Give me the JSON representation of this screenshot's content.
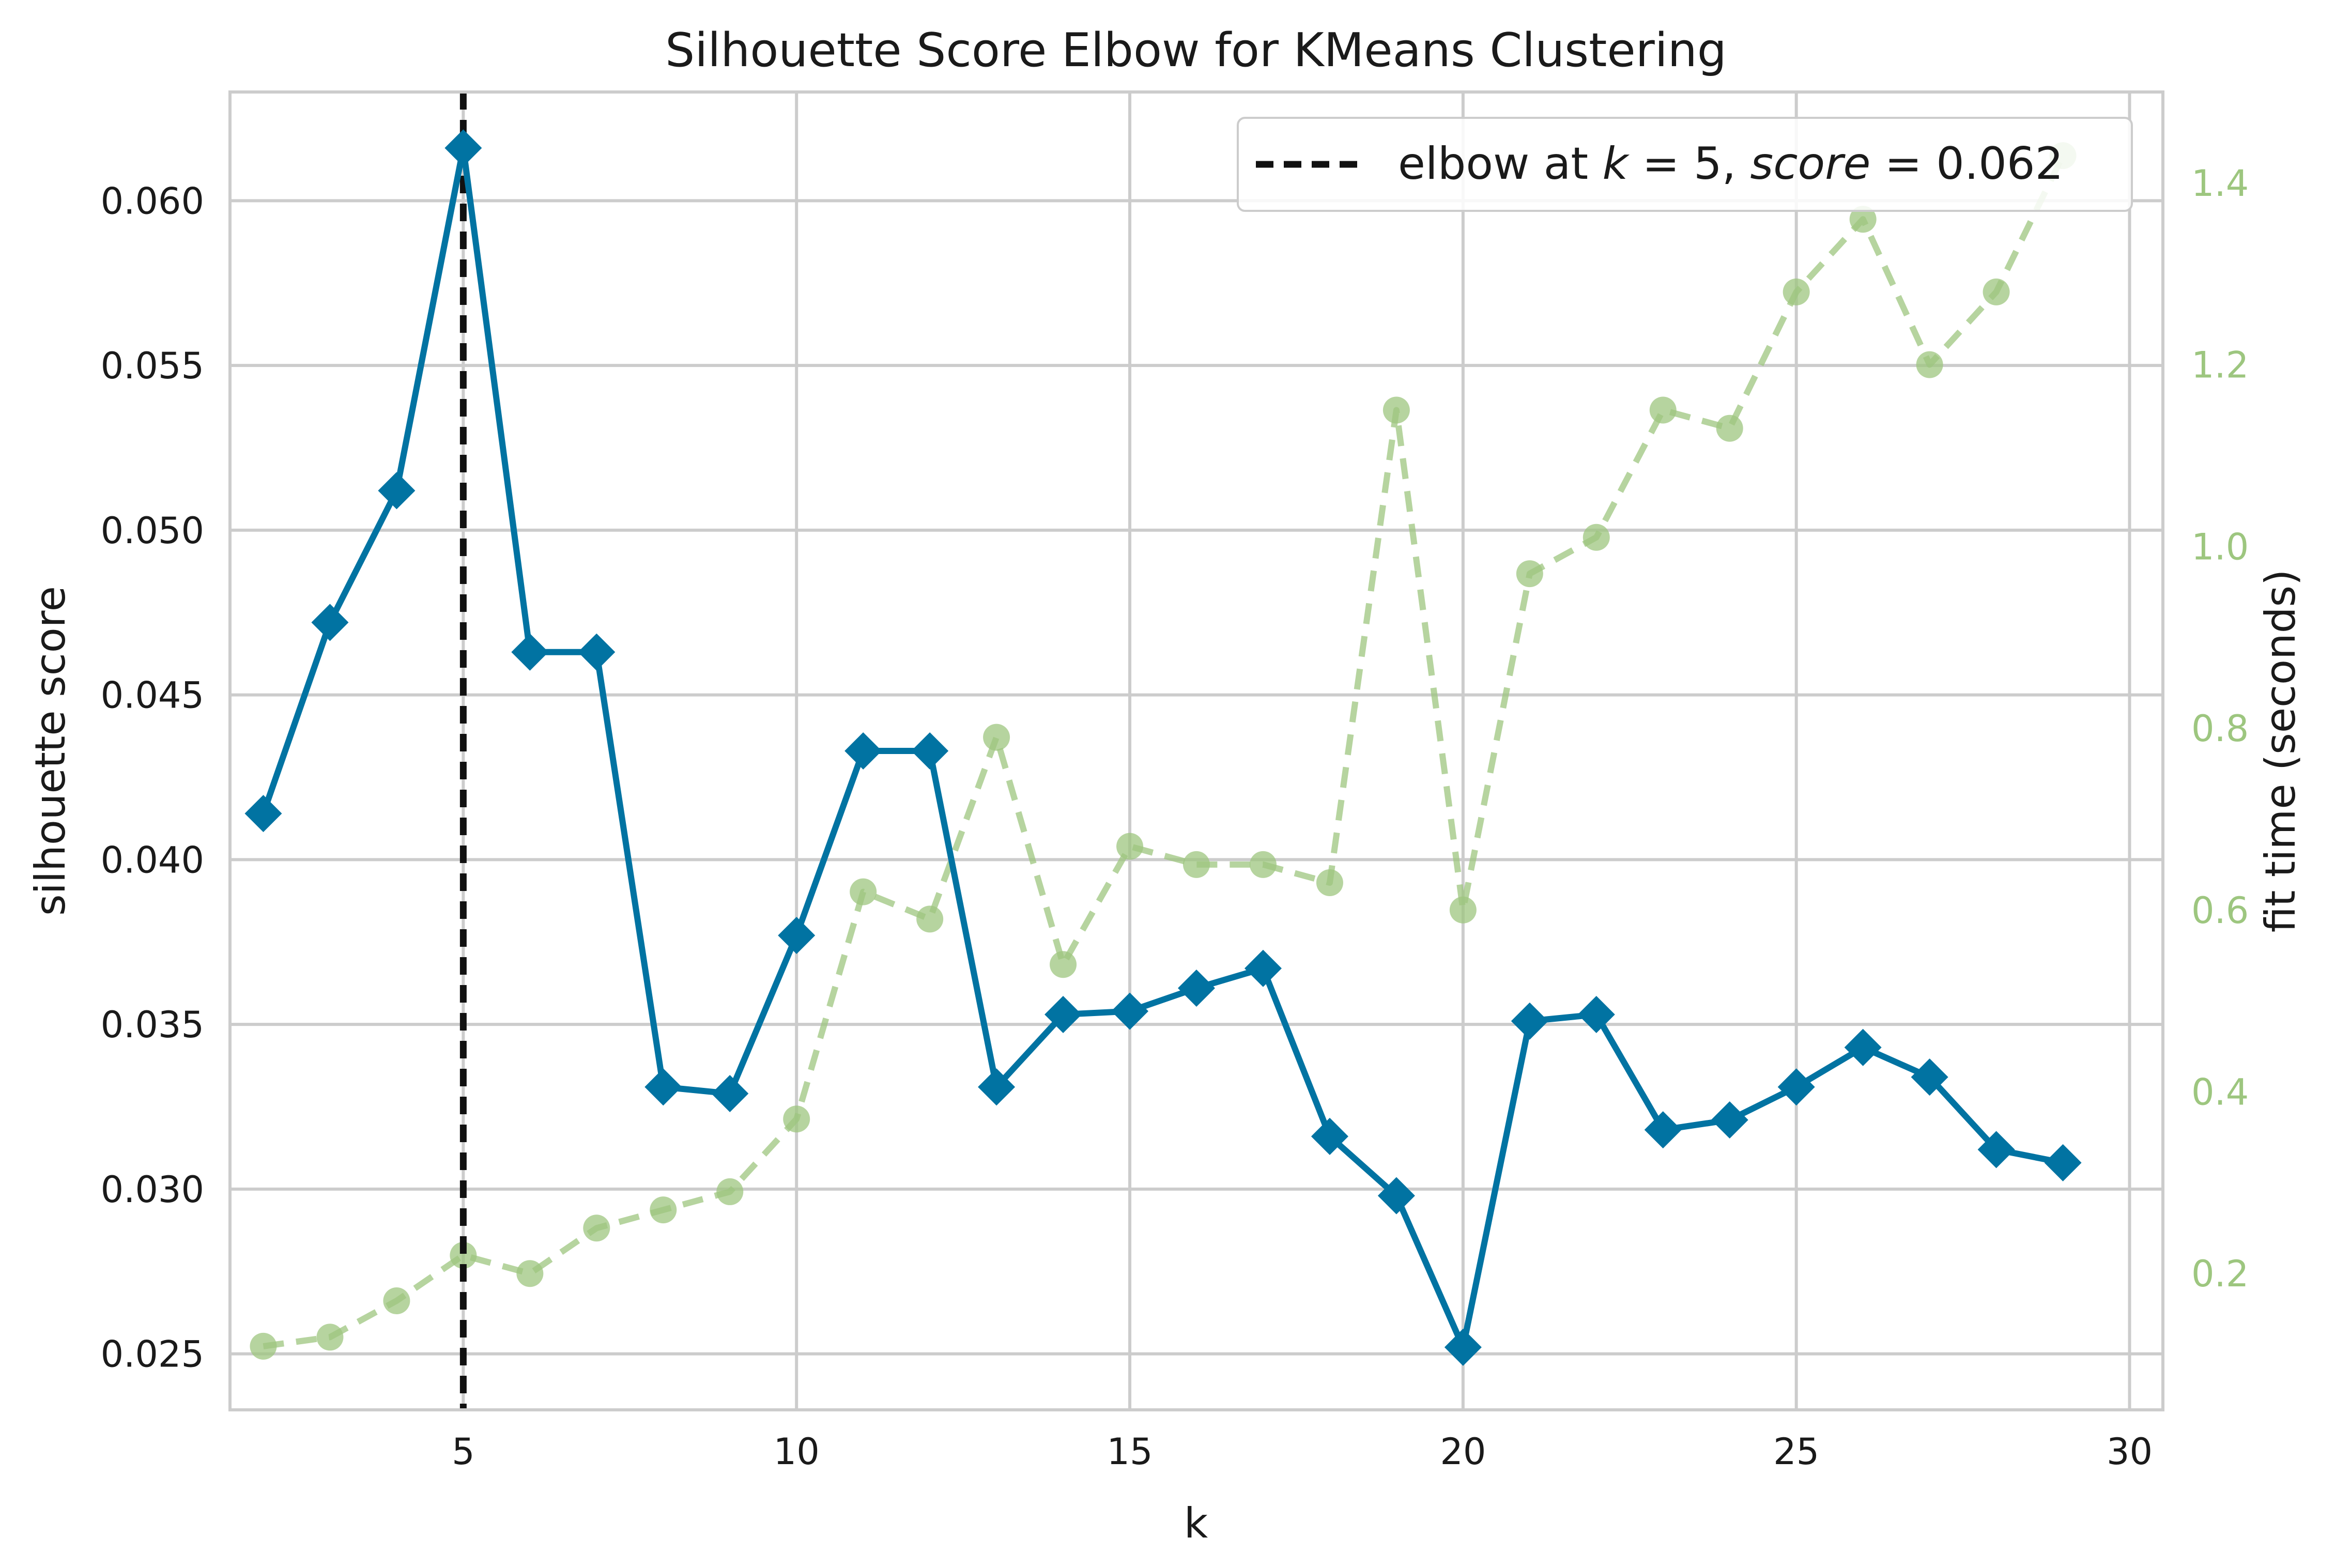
{
  "chart_data": {
    "type": "line",
    "title": "Silhouette Score Elbow for KMeans Clustering",
    "xlabel": "k",
    "ylabel": "silhouette score",
    "y2label": "fit time (seconds)",
    "xlim": [
      1.5,
      30.5
    ],
    "ylim": [
      0.0233,
      0.0633
    ],
    "y2lim": [
      0.05,
      1.5
    ],
    "xticks": [
      "5",
      "10",
      "15",
      "20",
      "25",
      "30"
    ],
    "xtick_values": [
      5,
      10,
      15,
      20,
      25,
      30
    ],
    "yticks": [
      "0.025",
      "0.030",
      "0.035",
      "0.040",
      "0.045",
      "0.050",
      "0.055",
      "0.060"
    ],
    "ytick_values": [
      0.025,
      0.03,
      0.035,
      0.04,
      0.045,
      0.05,
      0.055,
      0.06
    ],
    "y2ticks": [
      "0.2",
      "0.4",
      "0.6",
      "0.8",
      "1.0",
      "1.2",
      "1.4"
    ],
    "y2tick_values": [
      0.2,
      0.4,
      0.6,
      0.8,
      1.0,
      1.2,
      1.4
    ],
    "grid": true,
    "legend_position": "top-right",
    "x": [
      2,
      3,
      4,
      5,
      6,
      7,
      8,
      9,
      10,
      11,
      12,
      13,
      14,
      15,
      16,
      17,
      18,
      19,
      20,
      21,
      22,
      23,
      24,
      25,
      26,
      27,
      28,
      29
    ],
    "series": [
      {
        "axis": "left",
        "marker": "diamond",
        "color": "#0173a2",
        "values": [
          0.0414,
          0.0472,
          0.0512,
          0.0616,
          0.0463,
          0.0463,
          0.0331,
          0.0329,
          0.0377,
          0.0433,
          0.0433,
          0.0331,
          0.0353,
          0.0354,
          0.0361,
          0.0367,
          0.0316,
          0.0298,
          0.0252,
          0.0351,
          0.0353,
          0.0318,
          0.0321,
          0.0331,
          0.0343,
          0.0334,
          0.0312,
          0.0308
        ]
      },
      {
        "axis": "right",
        "marker": "circle",
        "color": "#9dc67f",
        "dashed": true,
        "values": [
          0.12,
          0.13,
          0.17,
          0.22,
          0.2,
          0.25,
          0.27,
          0.29,
          0.37,
          0.62,
          0.59,
          0.79,
          0.54,
          0.67,
          0.65,
          0.65,
          0.63,
          1.15,
          0.6,
          0.97,
          1.01,
          1.15,
          1.13,
          1.28,
          1.36,
          1.2,
          1.28,
          1.43
        ]
      }
    ],
    "elbow": {
      "k": 5,
      "legend_label": "elbow at $k = 5$, $score = 0.062$",
      "legend_parts": [
        "elbow at ",
        "k",
        " = 5, ",
        "score",
        " = 0.062"
      ],
      "color": "#111111"
    }
  }
}
